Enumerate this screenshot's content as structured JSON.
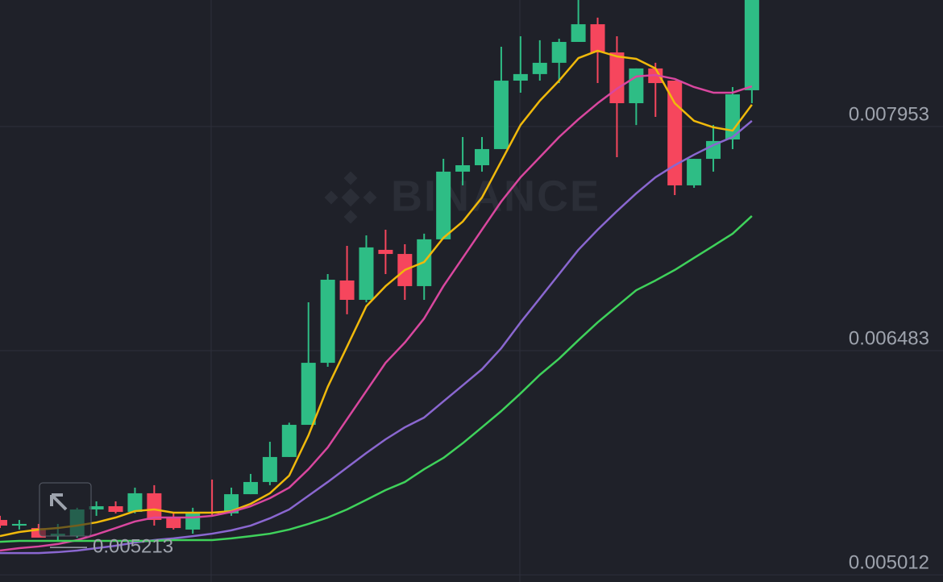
{
  "chart_data": {
    "type": "candlestick",
    "watermark": "BINANCE",
    "open": [
      0.005372,
      0.005335,
      0.005319,
      0.005267,
      0.005267,
      0.005441,
      0.005462,
      0.005425,
      0.005547,
      0.005383,
      0.005309,
      0.005425,
      0.005415,
      0.005541,
      0.005621,
      0.005785,
      0.005996,
      0.006403,
      0.006943,
      0.006816,
      0.007144,
      0.007117,
      0.006906,
      0.007213,
      0.007657,
      0.007699,
      0.007805,
      0.008254,
      0.008297,
      0.008371,
      0.008508,
      0.008624,
      0.008439,
      0.008106,
      0.008334,
      0.008254,
      0.007567,
      0.007741,
      0.007868,
      0.008191
    ],
    "high": [
      0.005399,
      0.005372,
      0.005346,
      0.005346,
      0.005452,
      0.005494,
      0.005494,
      0.005584,
      0.0056,
      0.005415,
      0.005452,
      0.005637,
      0.005584,
      0.005674,
      0.005885,
      0.00601,
      0.0068,
      0.006985,
      0.00717,
      0.007239,
      0.007276,
      0.007181,
      0.00725,
      0.007741,
      0.007884,
      0.007884,
      0.008476,
      0.008545,
      0.008519,
      0.008529,
      0.008783,
      0.008667,
      0.008545,
      0.008334,
      0.008371,
      0.008254,
      0.007741,
      0.007963,
      0.008212,
      0.008783
    ],
    "low": [
      0.005319,
      0.005309,
      0.005256,
      0.00523,
      0.005256,
      0.005399,
      0.005415,
      0.005415,
      0.005335,
      0.005309,
      0.005282,
      0.005399,
      0.005399,
      0.005541,
      0.0056,
      0.005785,
      0.005996,
      0.006377,
      0.006721,
      0.0068,
      0.006985,
      0.006816,
      0.006816,
      0.007213,
      0.007567,
      0.007657,
      0.007805,
      0.008175,
      0.008254,
      0.008238,
      0.008508,
      0.008238,
      0.007752,
      0.007963,
      0.008016,
      0.007503,
      0.007551,
      0.007657,
      0.007805,
      0.008106
    ],
    "close": [
      0.005335,
      0.005346,
      0.005256,
      0.005282,
      0.005441,
      0.005462,
      0.005425,
      0.005547,
      0.005372,
      0.005319,
      0.005425,
      0.005415,
      0.005541,
      0.005621,
      0.005785,
      0.005996,
      0.006403,
      0.006948,
      0.006816,
      0.00716,
      0.007117,
      0.006906,
      0.007213,
      0.007657,
      0.007699,
      0.007805,
      0.008254,
      0.008297,
      0.008371,
      0.008508,
      0.008624,
      0.008439,
      0.008106,
      0.008334,
      0.008238,
      0.007567,
      0.007741,
      0.007858,
      0.008164,
      0.008783
    ],
    "up_color": "#2ebd85",
    "down_color": "#f6465d",
    "series": [
      {
        "color": "#f0b90b",
        "values": [
          0.005266,
          0.005293,
          0.005309,
          0.005319,
          0.005335,
          0.005356,
          0.005388,
          0.00543,
          0.005441,
          0.00542,
          0.00542,
          0.00542,
          0.00543,
          0.005478,
          0.005547,
          0.005663,
          0.005927,
          0.006245,
          0.006509,
          0.006774,
          0.006906,
          0.007012,
          0.007064,
          0.007223,
          0.007329,
          0.007487,
          0.007725,
          0.007963,
          0.008122,
          0.008254,
          0.008402,
          0.00845,
          0.008413,
          0.008397,
          0.008334,
          0.008106,
          0.00799,
          0.007948,
          0.007926,
          0.008096
        ]
      },
      {
        "color": "#d9479f",
        "values": [
          0.005171,
          0.005187,
          0.005198,
          0.005214,
          0.00524,
          0.005277,
          0.005319,
          0.005362,
          0.005388,
          0.005388,
          0.005388,
          0.005399,
          0.005425,
          0.005462,
          0.005515,
          0.005584,
          0.005705,
          0.005848,
          0.006033,
          0.006218,
          0.006403,
          0.006536,
          0.006694,
          0.006906,
          0.007091,
          0.007276,
          0.007461,
          0.00762,
          0.007752,
          0.007884,
          0.008,
          0.008106,
          0.008201,
          0.008281,
          0.008291,
          0.008265,
          0.008212,
          0.008175,
          0.008175,
          0.008217
        ]
      },
      {
        "color": "#8a67d0",
        "values": [
          0.005155,
          0.005155,
          0.005155,
          0.005161,
          0.005171,
          0.005187,
          0.005203,
          0.005224,
          0.00524,
          0.005251,
          0.005266,
          0.005282,
          0.005304,
          0.005335,
          0.005383,
          0.005441,
          0.005531,
          0.005621,
          0.005716,
          0.005811,
          0.005901,
          0.00598,
          0.006044,
          0.00615,
          0.006255,
          0.006361,
          0.006499,
          0.006668,
          0.006826,
          0.006985,
          0.007144,
          0.007276,
          0.007398,
          0.007514,
          0.00762,
          0.007699,
          0.007768,
          0.007831,
          0.007884,
          0.00799
        ]
      },
      {
        "color": "#3fd25b",
        "values": [
          0.005229,
          0.005235,
          0.005235,
          0.005235,
          0.005235,
          0.005235,
          0.005235,
          0.005235,
          0.005235,
          0.00524,
          0.00524,
          0.00524,
          0.005251,
          0.005266,
          0.005282,
          0.005309,
          0.005346,
          0.005388,
          0.005441,
          0.005504,
          0.005568,
          0.005621,
          0.005705,
          0.005779,
          0.005875,
          0.00598,
          0.006086,
          0.006202,
          0.006324,
          0.00643,
          0.006551,
          0.006668,
          0.006774,
          0.006879,
          0.006943,
          0.007012,
          0.007091,
          0.00717,
          0.00725,
          0.007366
        ]
      }
    ],
    "low_marker": 0.005213,
    "ylim": [
      0.004965,
      0.008783
    ],
    "yticks": [
      0.007953,
      0.006483,
      0.005012
    ],
    "grid": true
  }
}
